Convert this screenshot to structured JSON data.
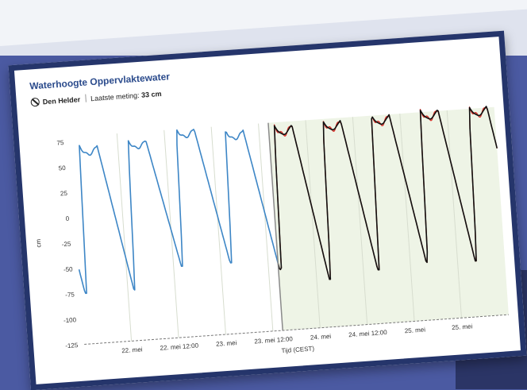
{
  "card": {
    "title": "Waterhoogte Oppervlaktewater",
    "location": "Den Helder",
    "last_label": "Laatste meting:",
    "last_value": "33 cm"
  },
  "colors": {
    "measured": "#3d86c6",
    "expected": "#d9322b",
    "forecast": "#111111",
    "forecast_bg": "#eef4e6",
    "title": "#2b4b8c",
    "frame": "#25356b"
  },
  "chart_data": {
    "type": "line",
    "xlabel": "Tijd (CEST)",
    "ylabel": "cm",
    "ylim": [
      -125,
      80
    ],
    "yticks": [
      75,
      50,
      25,
      0,
      -25,
      -50,
      -75,
      -100,
      -125
    ],
    "x_unit": "hours since 21 mei 12:00",
    "xlim": [
      0,
      108
    ],
    "xticks": [
      {
        "x": 12,
        "label": "22. mei"
      },
      {
        "x": 24,
        "label": "22. mei 12:00"
      },
      {
        "x": 36,
        "label": "23. mei"
      },
      {
        "x": 48,
        "label": "23. mei 12:00"
      },
      {
        "x": 60,
        "label": "24. mei"
      },
      {
        "x": 72,
        "label": "24. mei 12:00"
      },
      {
        "x": 84,
        "label": "25. mei"
      },
      {
        "x": 96,
        "label": "25. mei"
      }
    ],
    "now_x": 50.5,
    "tide_period_hours": 12.42,
    "series": [
      {
        "name": "",
        "role": "measured",
        "x_range": [
          0,
          50.5
        ],
        "color": "#3d86c6"
      },
      {
        "name": "",
        "role": "expected",
        "x_range": [
          50.5,
          108
        ],
        "color": "#d9322b"
      },
      {
        "name": "",
        "role": "forecast",
        "x_range": [
          50.5,
          108
        ],
        "color": "#111111"
      }
    ],
    "phase_offset_hours": 1.5,
    "high_levels": [
      70,
      72,
      80,
      75,
      77,
      78,
      80,
      82
    ],
    "low_levels": [
      -75,
      -55,
      -55,
      -65,
      -78,
      -72,
      -68,
      -70
    ]
  }
}
